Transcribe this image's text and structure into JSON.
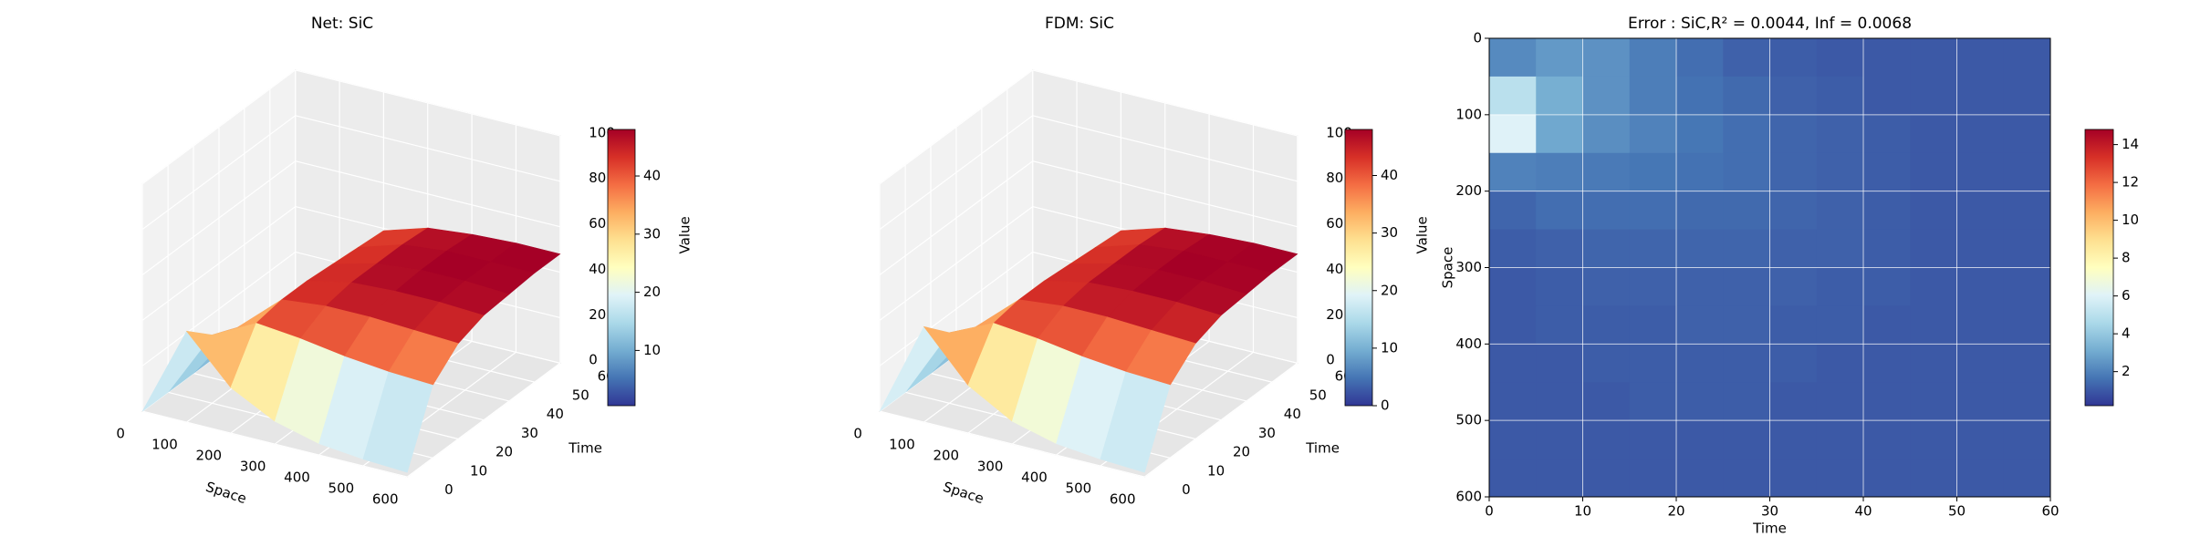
{
  "chart_data": [
    {
      "type": "surface3d",
      "title": "Net: SiC",
      "xlabel": "Space",
      "ylabel": "Time",
      "zlabel": "Value",
      "x": [
        0,
        100,
        200,
        300,
        400,
        500,
        600
      ],
      "y": [
        0,
        10,
        20,
        30,
        40,
        50,
        60
      ],
      "z": [
        [
          0,
          40,
          20,
          10,
          5,
          3,
          2
        ],
        [
          0,
          30,
          40,
          38,
          35,
          33,
          32
        ],
        [
          0,
          25,
          42,
          44,
          44,
          43,
          42
        ],
        [
          0,
          22,
          42,
          46,
          47,
          47,
          46
        ],
        [
          0,
          20,
          41,
          46,
          48,
          48,
          47
        ],
        [
          0,
          18,
          40,
          46,
          48,
          48,
          48
        ],
        [
          0,
          17,
          39,
          45,
          47,
          48,
          48
        ]
      ],
      "xlim": [
        0,
        600
      ],
      "xticks": [
        0,
        100,
        200,
        300,
        400,
        500,
        600
      ],
      "ylim": [
        0,
        60
      ],
      "yticks": [
        0,
        10,
        20,
        30,
        40,
        50,
        60
      ],
      "zlim": [
        0,
        100
      ],
      "zticks": [
        0,
        20,
        40,
        60,
        80,
        100
      ],
      "colormap": "RdYlBu_r",
      "colorbar_lim": [
        0.5,
        48
      ],
      "colorbar_ticks": [
        10,
        20,
        30,
        40
      ]
    },
    {
      "type": "surface3d",
      "title": "FDM: SiC",
      "xlabel": "Space",
      "ylabel": "Time",
      "zlabel": "Value",
      "x": [
        0,
        100,
        200,
        300,
        400,
        500,
        600
      ],
      "y": [
        0,
        10,
        20,
        30,
        40,
        50,
        60
      ],
      "z": [
        [
          0,
          42,
          21,
          10,
          5,
          3,
          2
        ],
        [
          0,
          31,
          40,
          38,
          35,
          33,
          32
        ],
        [
          0,
          25,
          42,
          44,
          44,
          43,
          42
        ],
        [
          0,
          22,
          42,
          46,
          47,
          47,
          46
        ],
        [
          0,
          20,
          41,
          46,
          48,
          48,
          47
        ],
        [
          0,
          18,
          40,
          46,
          48,
          48,
          48
        ],
        [
          0,
          17,
          39,
          45,
          47,
          48,
          48
        ]
      ],
      "xlim": [
        0,
        600
      ],
      "xticks": [
        0,
        100,
        200,
        300,
        400,
        500,
        600
      ],
      "ylim": [
        0,
        60
      ],
      "yticks": [
        0,
        10,
        20,
        30,
        40,
        50,
        60
      ],
      "zlim": [
        0,
        100
      ],
      "zticks": [
        0,
        20,
        40,
        60,
        80,
        100
      ],
      "colormap": "RdYlBu_r",
      "colorbar_lim": [
        0,
        48
      ],
      "colorbar_ticks": [
        0,
        10,
        20,
        30,
        40
      ]
    },
    {
      "type": "heatmap",
      "title": "Error : SiC,R² = 0.0044, Inf = 0.0068",
      "xlabel": "Time",
      "ylabel": "Space",
      "xlim": [
        0,
        60
      ],
      "xticks": [
        0,
        10,
        20,
        30,
        40,
        50,
        60
      ],
      "ylim": [
        600,
        0
      ],
      "yticks": [
        0,
        100,
        200,
        300,
        400,
        500,
        600
      ],
      "z": [
        [
          2.2,
          2.6,
          2.4,
          1.9,
          1.5,
          1.2,
          1.1,
          1.0,
          1.0,
          1.0,
          1.0,
          1.0
        ],
        [
          5.0,
          3.2,
          2.4,
          1.9,
          1.6,
          1.4,
          1.2,
          1.1,
          1.0,
          1.0,
          1.0,
          1.0
        ],
        [
          6.0,
          3.0,
          2.3,
          2.0,
          1.7,
          1.5,
          1.3,
          1.2,
          1.1,
          1.0,
          1.0,
          1.0
        ],
        [
          2.0,
          1.9,
          1.8,
          1.7,
          1.6,
          1.5,
          1.3,
          1.2,
          1.1,
          1.0,
          1.0,
          1.0
        ],
        [
          1.3,
          1.5,
          1.5,
          1.5,
          1.4,
          1.4,
          1.3,
          1.2,
          1.1,
          1.0,
          1.0,
          1.0
        ],
        [
          1.1,
          1.2,
          1.3,
          1.3,
          1.3,
          1.3,
          1.2,
          1.2,
          1.1,
          1.0,
          1.0,
          1.0
        ],
        [
          1.0,
          1.1,
          1.2,
          1.2,
          1.2,
          1.2,
          1.2,
          1.1,
          1.1,
          1.0,
          1.0,
          1.0
        ],
        [
          1.0,
          1.1,
          1.1,
          1.1,
          1.2,
          1.2,
          1.1,
          1.1,
          1.0,
          1.0,
          1.0,
          1.0
        ],
        [
          1.0,
          1.0,
          1.1,
          1.1,
          1.1,
          1.1,
          1.1,
          1.0,
          1.0,
          1.0,
          1.0,
          1.0
        ],
        [
          1.0,
          1.0,
          1.0,
          1.1,
          1.1,
          1.1,
          1.0,
          1.0,
          1.0,
          1.0,
          1.0,
          1.0
        ],
        [
          1.0,
          1.0,
          1.0,
          1.0,
          1.0,
          1.0,
          1.0,
          1.0,
          1.0,
          1.0,
          1.0,
          1.0
        ],
        [
          1.0,
          1.0,
          1.0,
          1.0,
          1.0,
          1.0,
          1.0,
          1.0,
          1.0,
          1.0,
          1.0,
          1.0
        ]
      ],
      "colormap": "RdYlBu_r",
      "colorbar_lim": [
        0.2,
        14.8
      ],
      "colorbar_ticks": [
        2,
        4,
        6,
        8,
        10,
        12,
        14
      ],
      "grid": true
    }
  ]
}
